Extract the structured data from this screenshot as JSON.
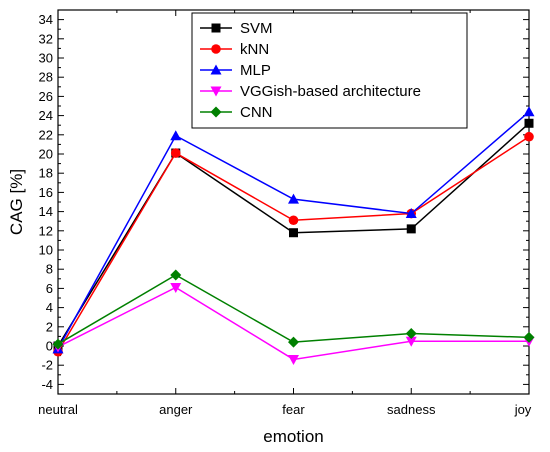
{
  "chart_data": {
    "type": "line",
    "categories": [
      "neutral",
      "anger",
      "fear",
      "sadness",
      "joy"
    ],
    "xlabel": "emotion",
    "ylabel": "CAG [%]",
    "ylim": [
      -5,
      35
    ],
    "y_ticks": [
      -4,
      -2,
      0,
      2,
      4,
      6,
      8,
      10,
      12,
      14,
      16,
      18,
      20,
      22,
      24,
      26,
      28,
      30,
      32,
      34
    ],
    "grid": false,
    "legend_position": "top-right",
    "series": [
      {
        "name": "SVM",
        "color": "#000000",
        "marker": "square",
        "values": [
          0,
          20.1,
          11.8,
          12.2,
          23.2
        ]
      },
      {
        "name": "kNN",
        "color": "#ff0000",
        "marker": "circle",
        "values": [
          -0.6,
          20.1,
          13.1,
          13.8,
          21.8
        ]
      },
      {
        "name": "MLP",
        "color": "#0000ff",
        "marker": "triangle-up",
        "values": [
          -0.3,
          21.9,
          15.3,
          13.8,
          24.4
        ]
      },
      {
        "name": "VGGish-based architecture",
        "color": "#ff00ff",
        "marker": "triangle-down",
        "values": [
          -0.1,
          6.1,
          -1.4,
          0.5,
          0.5
        ]
      },
      {
        "name": "CNN",
        "color": "#008000",
        "marker": "diamond",
        "values": [
          0.2,
          7.4,
          0.4,
          1.3,
          0.9
        ]
      }
    ]
  }
}
